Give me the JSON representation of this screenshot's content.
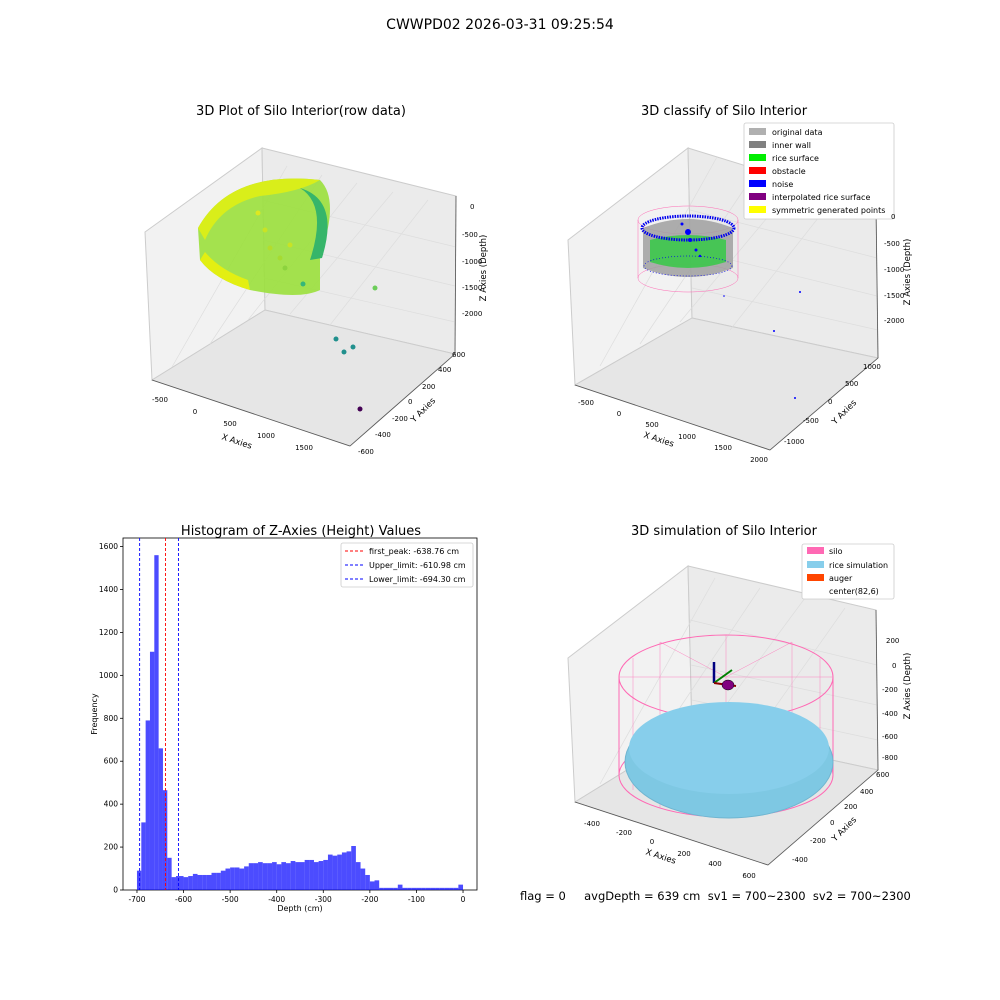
{
  "figure": {
    "title": "CWWPD02 2026-03-31 09:25:54"
  },
  "panels": {
    "raw": {
      "title": "3D Plot of Silo Interior(row data)",
      "xlabel": "X Axies",
      "ylabel": "Y Axies",
      "zlabel": "Z Axies (Depth)",
      "xticks": [
        "-500",
        "0",
        "500",
        "1000",
        "1500"
      ],
      "yticks": [
        "600",
        "400",
        "200",
        "0",
        "-200",
        "-400",
        "-600"
      ],
      "zticks": [
        "0",
        "-500",
        "-1000",
        "-1500",
        "-2000"
      ]
    },
    "classify": {
      "title": "3D classify of Silo Interior",
      "xlabel": "X Axies",
      "ylabel": "Y Axies",
      "zlabel": "Z Axies (Depth)",
      "xticks": [
        "-500",
        "0",
        "500",
        "1000",
        "1500",
        "2000"
      ],
      "yticks": [
        "1000",
        "500",
        "0",
        "-500",
        "-1000"
      ],
      "zticks": [
        "0",
        "-500",
        "-1000",
        "-1500",
        "-2000"
      ],
      "legend": [
        {
          "label": "original data",
          "color": "#b0b0b0"
        },
        {
          "label": "inner wall",
          "color": "#808080"
        },
        {
          "label": "rice surface",
          "color": "#00ee00"
        },
        {
          "label": "obstacle",
          "color": "#ff0000"
        },
        {
          "label": "noise",
          "color": "#0000ff"
        },
        {
          "label": "interpolated rice surface",
          "color": "#800080"
        },
        {
          "label": "symmetric generated points",
          "color": "#ffff00"
        }
      ]
    },
    "simulation": {
      "title": "3D simulation of Silo Interior",
      "xlabel": "X Axies",
      "ylabel": "Y Axies",
      "zlabel": "Z Axies (Depth)",
      "xticks": [
        "-400",
        "-200",
        "0",
        "200",
        "400",
        "600"
      ],
      "yticks": [
        "600",
        "400",
        "200",
        "0",
        "-200",
        "-400"
      ],
      "zticks": [
        "200",
        "0",
        "-200",
        "-400",
        "-600",
        "-800"
      ],
      "legend": [
        {
          "label": "silo",
          "color": "#ff69b4"
        },
        {
          "label": "rice simulation",
          "color": "#87ceeb"
        },
        {
          "label": "auger",
          "color": "#ff4500"
        },
        {
          "label": "center(82,6)",
          "color": ""
        }
      ]
    }
  },
  "footer": {
    "text": "flag = 0     avgDepth = 639 cm  sv1 = 700~2300  sv2 = 700~2300"
  },
  "chart_data": {
    "type": "bar",
    "title": "Histogram of Z-Axies (Height) Values",
    "xlabel": "Depth (cm)",
    "ylabel": "Frequency",
    "xlim": [
      -730,
      30
    ],
    "ylim": [
      0,
      1640
    ],
    "bar_color": "#0000ff",
    "xticks": [
      "-700",
      "-600",
      "-500",
      "-400",
      "-300",
      "-200",
      "-100",
      "0"
    ],
    "yticks": [
      "0",
      "200",
      "400",
      "600",
      "800",
      "1000",
      "1200",
      "1400",
      "1600"
    ],
    "bins": [
      [
        -700.0,
        -690.7,
        90
      ],
      [
        -690.7,
        -681.4,
        315
      ],
      [
        -681.4,
        -672.1,
        790
      ],
      [
        -672.1,
        -662.8,
        1110
      ],
      [
        -662.8,
        -653.5,
        1560
      ],
      [
        -653.5,
        -644.2,
        660
      ],
      [
        -644.2,
        -634.9,
        465
      ],
      [
        -634.9,
        -625.6,
        150
      ],
      [
        -625.6,
        -616.3,
        60
      ],
      [
        -616.3,
        -600.0,
        65
      ],
      [
        -600,
        -590,
        60
      ],
      [
        -590,
        -580,
        65
      ],
      [
        -580,
        -570,
        75
      ],
      [
        -570,
        -560,
        70
      ],
      [
        -560,
        -550,
        70
      ],
      [
        -550,
        -540,
        70
      ],
      [
        -540,
        -530,
        80
      ],
      [
        -530,
        -520,
        80
      ],
      [
        -520,
        -510,
        90
      ],
      [
        -510,
        -500,
        100
      ],
      [
        -500,
        -490,
        105
      ],
      [
        -490,
        -480,
        105
      ],
      [
        -480,
        -470,
        100
      ],
      [
        -470,
        -460,
        110
      ],
      [
        -460,
        -450,
        125
      ],
      [
        -450,
        -440,
        125
      ],
      [
        -440,
        -430,
        130
      ],
      [
        -430,
        -420,
        125
      ],
      [
        -420,
        -410,
        125
      ],
      [
        -410,
        -400,
        130
      ],
      [
        -400,
        -390,
        120
      ],
      [
        -390,
        -380,
        130
      ],
      [
        -380,
        -370,
        125
      ],
      [
        -370,
        -360,
        135
      ],
      [
        -360,
        -350,
        130
      ],
      [
        -350,
        -340,
        130
      ],
      [
        -340,
        -330,
        140
      ],
      [
        -330,
        -320,
        140
      ],
      [
        -320,
        -310,
        130
      ],
      [
        -310,
        -300,
        135
      ],
      [
        -300,
        -290,
        140
      ],
      [
        -290,
        -280,
        165
      ],
      [
        -280,
        -270,
        160
      ],
      [
        -270,
        -260,
        165
      ],
      [
        -260,
        -250,
        175
      ],
      [
        -250,
        -240,
        180
      ],
      [
        -240,
        -230,
        205
      ],
      [
        -230,
        -220,
        130
      ],
      [
        -220,
        -210,
        100
      ],
      [
        -210,
        -200,
        70
      ],
      [
        -200,
        -190,
        40
      ],
      [
        -190,
        -180,
        45
      ],
      [
        -180,
        -170,
        10
      ],
      [
        -170,
        -160,
        10
      ],
      [
        -160,
        -150,
        10
      ],
      [
        -150,
        -140,
        10
      ],
      [
        -140,
        -130,
        25
      ],
      [
        -130,
        -120,
        10
      ],
      [
        -120,
        -110,
        10
      ],
      [
        -110,
        -100,
        10
      ],
      [
        -100,
        -90,
        10
      ],
      [
        -90,
        -80,
        10
      ],
      [
        -80,
        -70,
        10
      ],
      [
        -70,
        -60,
        10
      ],
      [
        -60,
        -50,
        10
      ],
      [
        -50,
        -40,
        10
      ],
      [
        -40,
        -30,
        10
      ],
      [
        -30,
        -20,
        10
      ],
      [
        -20,
        -10,
        10
      ],
      [
        -10,
        0,
        25
      ]
    ],
    "vlines": [
      {
        "label": "first_peak: -638.76 cm",
        "x": -638.76,
        "color": "#ff0000"
      },
      {
        "label": "Upper_limit: -610.98 cm",
        "x": -610.98,
        "color": "#0000ff"
      },
      {
        "label": "Lower_limit: -694.30 cm",
        "x": -694.3,
        "color": "#0000ff"
      }
    ]
  }
}
